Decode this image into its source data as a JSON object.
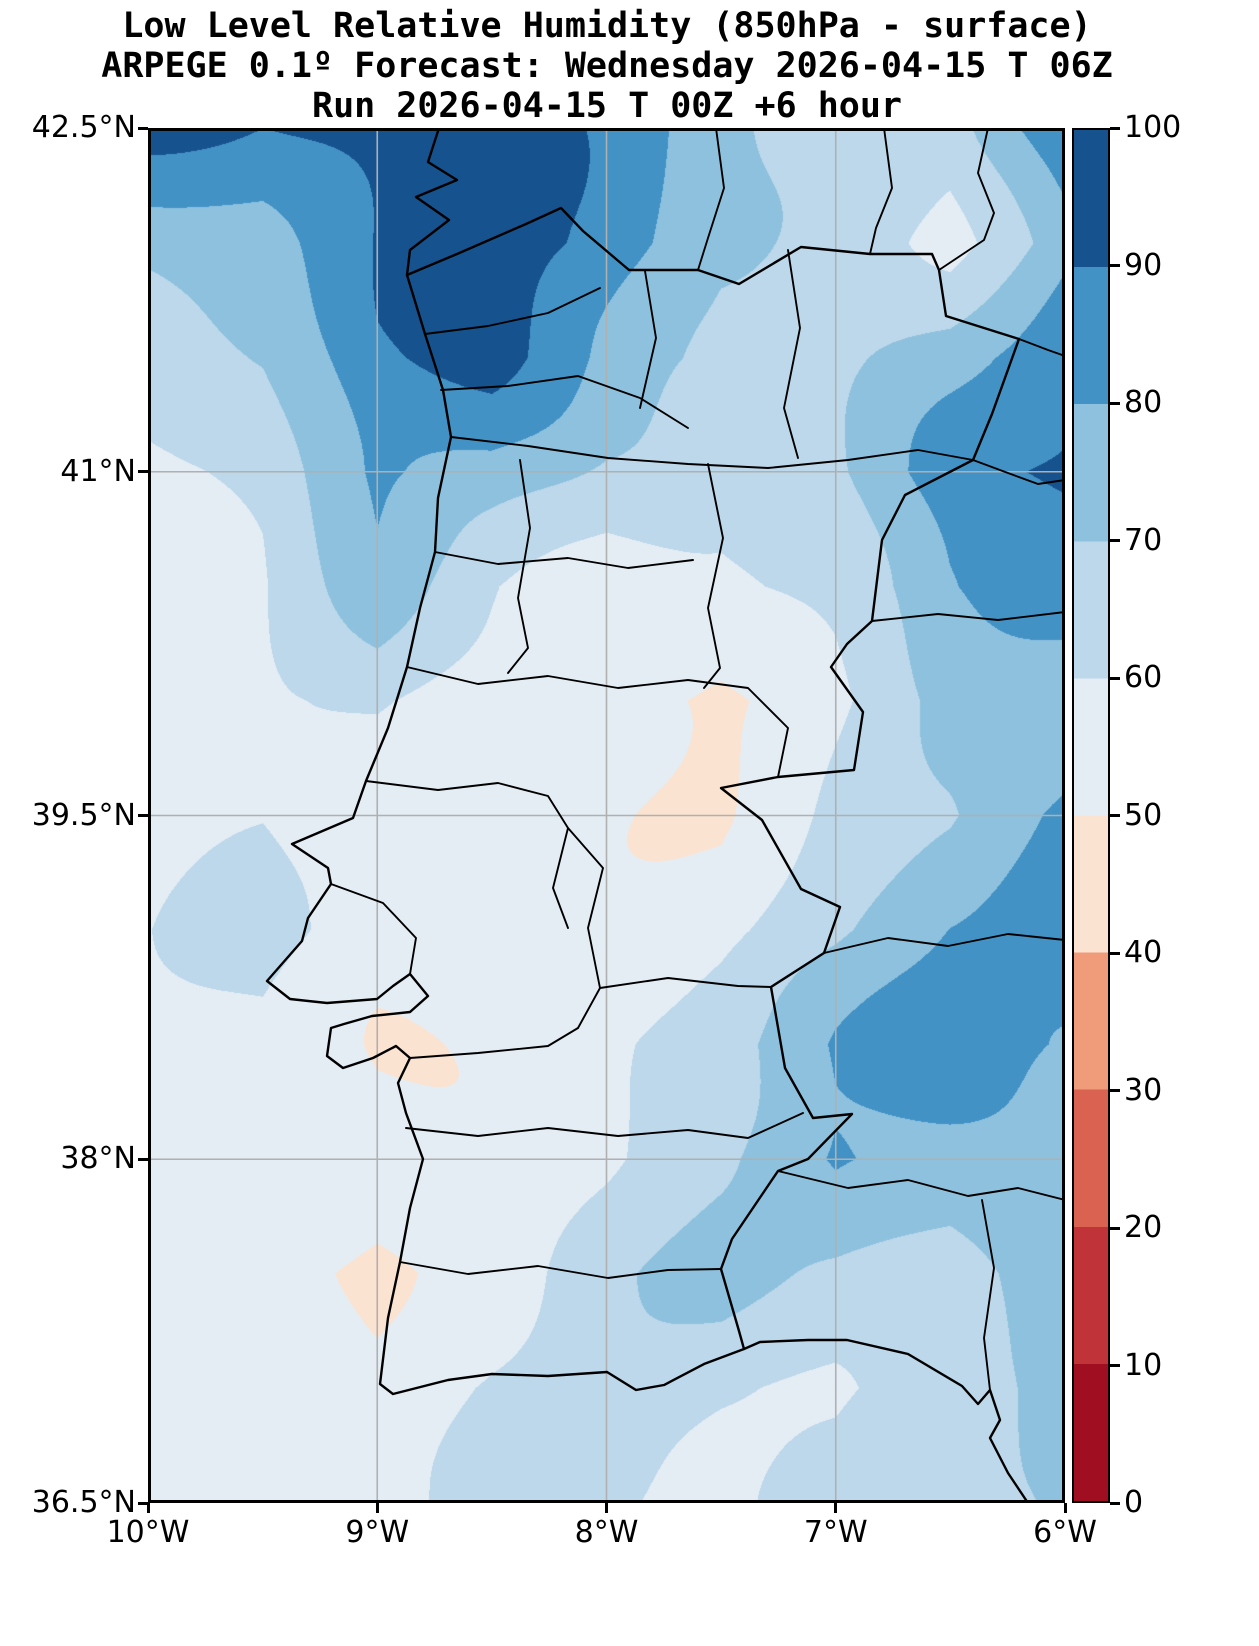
{
  "chart_data": {
    "type": "heatmap",
    "title": "Low Level Relative Humidity (850hPa - surface)",
    "subtitle": "ARPEGE 0.1º Forecast: Wednesday 2026-04-15 T 06Z",
    "run_label": "Run 2026-04-15 T 00Z +6 hour",
    "x_axis": {
      "min": -10,
      "max": -6,
      "ticks": [
        {
          "value": -10,
          "label": "10°W"
        },
        {
          "value": -9,
          "label": "9°W"
        },
        {
          "value": -8,
          "label": "8°W"
        },
        {
          "value": -7,
          "label": "7°W"
        },
        {
          "value": -6,
          "label": "6°W"
        }
      ],
      "gridlines": [
        -9,
        -8,
        -7
      ]
    },
    "y_axis": {
      "min": 36.5,
      "max": 42.5,
      "ticks": [
        {
          "value": 42.5,
          "label": "42.5°N"
        },
        {
          "value": 41,
          "label": "41°N"
        },
        {
          "value": 39.5,
          "label": "39.5°N"
        },
        {
          "value": 38,
          "label": "38°N"
        },
        {
          "value": 36.5,
          "label": "36.5°N"
        }
      ],
      "gridlines": [
        41,
        39.5,
        38
      ]
    },
    "colorbar": {
      "min": 0,
      "max": 100,
      "tick_values": [
        0,
        10,
        20,
        30,
        40,
        50,
        60,
        70,
        80,
        90,
        100
      ],
      "colors": [
        "#a00f21",
        "#c03338",
        "#d96350",
        "#f09b7a",
        "#fbe3d1",
        "#e4edf4",
        "#bcd8ea",
        "#8ec1dd",
        "#4292c6",
        "#16528e"
      ]
    },
    "gridline_color": "#b0b0b0",
    "boundary_color": "#000000",
    "grid": {
      "lon_min": -10,
      "lon_max": -6,
      "lat_min": 36.5,
      "lat_max": 42.5,
      "rows_order": "north_to_south",
      "values": [
        [
          93,
          88,
          95,
          97,
          85,
          75,
          63,
          62,
          90
        ],
        [
          72,
          78,
          92,
          96,
          88,
          72,
          65,
          58,
          78
        ],
        [
          62,
          70,
          88,
          92,
          78,
          70,
          66,
          75,
          88
        ],
        [
          58,
          62,
          84,
          78,
          66,
          62,
          68,
          85,
          93
        ],
        [
          56,
          58,
          75,
          62,
          55,
          58,
          65,
          80,
          82
        ],
        [
          55,
          57,
          62,
          55,
          50,
          47,
          58,
          72,
          72
        ],
        [
          56,
          60,
          55,
          52,
          52,
          50,
          62,
          70,
          85
        ],
        [
          57,
          66,
          54,
          51,
          54,
          58,
          66,
          80,
          88
        ],
        [
          55,
          58,
          52,
          52,
          57,
          66,
          80,
          87,
          82
        ],
        [
          54,
          55,
          52,
          53,
          58,
          68,
          84,
          76,
          72
        ],
        [
          56,
          52,
          48,
          56,
          66,
          72,
          68,
          64,
          76
        ],
        [
          54,
          51,
          53,
          62,
          68,
          64,
          60,
          64,
          74
        ],
        [
          52,
          51,
          56,
          62,
          62,
          58,
          62,
          68,
          72
        ]
      ]
    }
  }
}
